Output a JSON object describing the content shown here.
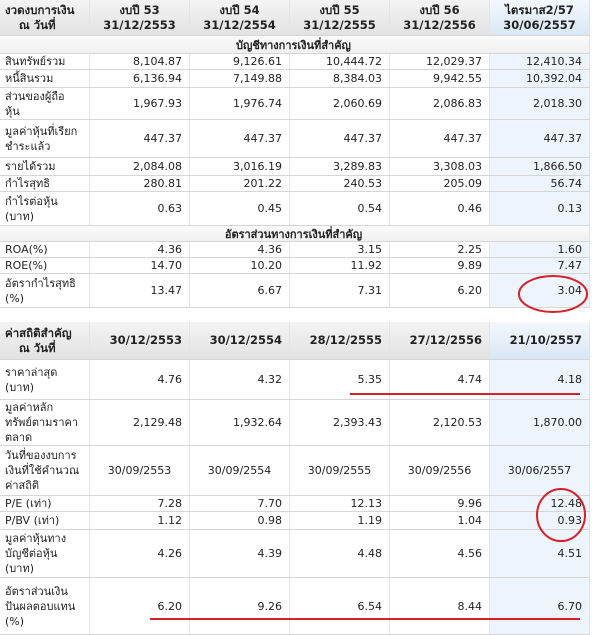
{
  "table1": {
    "header": [
      [
        "งวดงบการเงิน",
        "ณ วันที่"
      ],
      [
        "งบปี 53",
        "31/12/2553"
      ],
      [
        "งบปี 54",
        "31/12/2554"
      ],
      [
        "งบปี 55",
        "31/12/2555"
      ],
      [
        "งบปี 56",
        "31/12/2556"
      ],
      [
        "ไตรมาส2/57",
        "30/06/2557"
      ]
    ],
    "rows": [
      {
        "section": "บัญชีทางการเงินที่สำคัญ"
      },
      {
        "label": [
          "สินทรัพย์รวม"
        ],
        "values": [
          "8,104.87",
          "9,126.61",
          "10,444.72",
          "12,029.37",
          "12,410.34"
        ]
      },
      {
        "label": [
          "หนี้สินรวม"
        ],
        "values": [
          "6,136.94",
          "7,149.88",
          "8,384.03",
          "9,942.55",
          "10,392.04"
        ]
      },
      {
        "label": [
          "ส่วนของผู้ถือ",
          "หุ้น"
        ],
        "values": [
          "1,967.93",
          "1,976.74",
          "2,060.69",
          "2,086.83",
          "2,018.30"
        ]
      },
      {
        "label": [
          "มูลค่าหุ้นที่เรียก",
          "ชำระแล้ว"
        ],
        "values": [
          "447.37",
          "447.37",
          "447.37",
          "447.37",
          "447.37"
        ]
      },
      {
        "label": [
          "รายได้รวม"
        ],
        "values": [
          "2,084.08",
          "3,016.19",
          "3,289.83",
          "3,308.03",
          "1,866.50"
        ]
      },
      {
        "label": [
          "กำไรสุทธิ"
        ],
        "values": [
          "280.81",
          "201.22",
          "240.53",
          "205.09",
          "56.74"
        ]
      },
      {
        "label": [
          "กำไรต่อหุ้น",
          "(บาท)"
        ],
        "values": [
          "0.63",
          "0.45",
          "0.54",
          "0.46",
          "0.13"
        ]
      },
      {
        "section": "อัตราส่วนทางการเงินที่สำคัญ"
      },
      {
        "label": [
          "ROA(%)"
        ],
        "values": [
          "4.36",
          "4.36",
          "3.15",
          "2.25",
          "1.60"
        ]
      },
      {
        "label": [
          "ROE(%)"
        ],
        "values": [
          "14.70",
          "10.20",
          "11.92",
          "9.89",
          "7.47"
        ]
      },
      {
        "label": [
          "อัตรากำไรสุทธิ",
          "(%)"
        ],
        "values": [
          "13.47",
          "6.67",
          "7.31",
          "6.20",
          "3.04"
        ]
      }
    ]
  },
  "table2": {
    "header": [
      [
        "ค่าสถิติสำคัญ",
        "ณ วันที่"
      ],
      [
        "30/12/2553"
      ],
      [
        "30/12/2554"
      ],
      [
        "28/12/2555"
      ],
      [
        "27/12/2556"
      ],
      [
        "21/10/2557"
      ]
    ],
    "rows": [
      {
        "label": [
          "ราคาล่าสุด",
          "(บาท)"
        ],
        "values": [
          "4.76",
          "4.32",
          "5.35",
          "4.74",
          "4.18"
        ]
      },
      {
        "label": [
          "มูลค่าหลัก",
          "ทรัพย์ตามราคา",
          "ตลาด"
        ],
        "values": [
          "2,129.48",
          "1,932.64",
          "2,393.43",
          "2,120.53",
          "1,870.00"
        ]
      },
      {
        "label": [
          "วันที่ของงบการ",
          "เงินที่ใช้คำนวณ",
          "ค่าสถิติ"
        ],
        "values": [
          "30/09/2553",
          "30/09/2554",
          "30/09/2555",
          "30/09/2556",
          "30/06/2557"
        ]
      },
      {
        "label": [
          "P/E (เท่า)"
        ],
        "values": [
          "7.28",
          "7.70",
          "12.13",
          "9.96",
          "12.48"
        ]
      },
      {
        "label": [
          "P/BV (เท่า)"
        ],
        "values": [
          "1.12",
          "0.98",
          "1.19",
          "1.04",
          "0.93"
        ]
      },
      {
        "label": [
          "มูลค่าหุ้นทาง",
          "บัญชีต่อหุ้น",
          "(บาท)"
        ],
        "values": [
          "4.26",
          "4.39",
          "4.48",
          "4.56",
          "4.51"
        ]
      },
      {
        "label": [
          "อัตราส่วนเงิน",
          "ปันผลตอบแทน",
          "(%)"
        ],
        "values": [
          "6.20",
          "9.26",
          "6.54",
          "8.44",
          "6.70"
        ]
      }
    ]
  }
}
